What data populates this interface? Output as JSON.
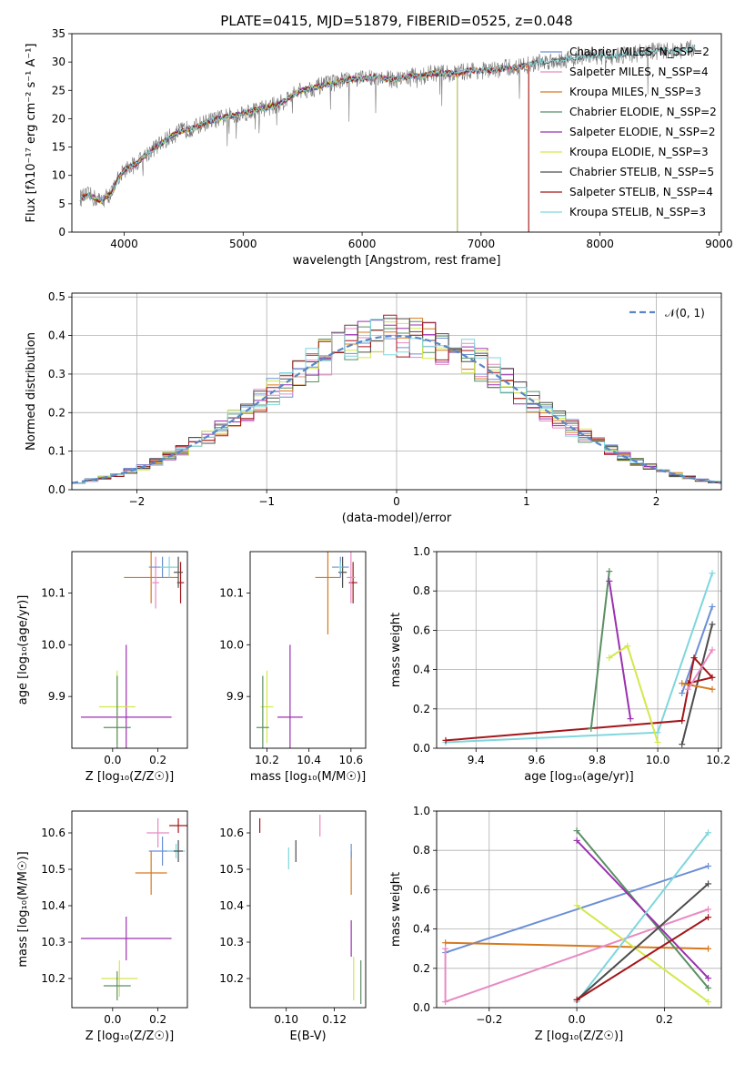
{
  "chart_data": [
    {
      "type": "line",
      "title": "PLATE=0415, MJD=51879, FIBERID=0525, z=0.048",
      "xlabel": "wavelength [Angstrom, rest frame]",
      "ylabel": "Flux [fλ10⁻¹⁷ erg cm⁻² s⁻¹ A⁻¹]",
      "xlim": [
        3560,
        9020
      ],
      "ylim": [
        0,
        35
      ],
      "xticks": [
        "4000",
        "5000",
        "6000",
        "7000",
        "8000",
        "9000"
      ],
      "yticks": [
        "0",
        "5",
        "10",
        "15",
        "20",
        "25",
        "30",
        "35"
      ],
      "legend_position": "top-right",
      "spectrum_anchors": {
        "x": [
          3630,
          3700,
          3800,
          3900,
          3950,
          4000,
          4100,
          4200,
          4300,
          4400,
          4500,
          4600,
          4700,
          4800,
          4900,
          5000,
          5100,
          5200,
          5300,
          5400,
          5500,
          5600,
          5700,
          5800,
          5900,
          6000,
          6100,
          6200,
          6300,
          6400,
          6500,
          6600,
          6700,
          6800,
          6900,
          7000,
          7100,
          7200,
          7300,
          7400,
          7500,
          7700,
          7900,
          8100,
          8300,
          8500,
          8700,
          8800
        ],
        "y": [
          6,
          6.5,
          5.5,
          7,
          9.5,
          11,
          12,
          14,
          15.5,
          17,
          18,
          18.5,
          19.5,
          20,
          20.5,
          21,
          21.5,
          22,
          22.5,
          24,
          25,
          25.5,
          26,
          26.5,
          27,
          27,
          27.5,
          27,
          27,
          27.5,
          27.5,
          28,
          28,
          28,
          28.5,
          28.5,
          28.5,
          29,
          29,
          29.5,
          30,
          30.5,
          31,
          31,
          31.5,
          32,
          32,
          32.5
        ]
      },
      "series": [
        {
          "name": "Chabrier MILES, N_SSP=2",
          "color": "#6b8fd6"
        },
        {
          "name": "Salpeter MILES, N_SSP=4",
          "color": "#e78ac3"
        },
        {
          "name": "Kroupa MILES, N_SSP=3",
          "color": "#d6791e"
        },
        {
          "name": "Chabrier ELODIE, N_SSP=2",
          "color": "#5a8f63"
        },
        {
          "name": "Salpeter ELODIE, N_SSP=2",
          "color": "#9b30b0"
        },
        {
          "name": "Kroupa ELODIE, N_SSP=3",
          "color": "#d4e84a"
        },
        {
          "name": "Chabrier STELIB, N_SSP=5",
          "color": "#4d4d4d"
        },
        {
          "name": "Salpeter STELIB, N_SSP=4",
          "color": "#a3161b"
        },
        {
          "name": "Kroupa STELIB, N_SSP=3",
          "color": "#7fd6dc"
        }
      ]
    },
    {
      "type": "area",
      "xlabel": "(data-model)/error",
      "ylabel": "Normed distribution",
      "xlim": [
        -2.5,
        2.5
      ],
      "ylim": [
        0,
        0.51
      ],
      "xticks": [
        "−2",
        "−1",
        "0",
        "1",
        "2"
      ],
      "yticks": [
        "0.0",
        "0.1",
        "0.2",
        "0.3",
        "0.4",
        "0.5"
      ],
      "legend": "𝒩(0, 1)",
      "legend_position": "top-right",
      "bin_width": 0.1,
      "grid": true
    },
    {
      "type": "scatter",
      "xlabel": "Z [log₁₀(Z/Z☉)]",
      "ylabel": "age  [log₁₀(age/yr)]",
      "xlim": [
        -0.18,
        0.33
      ],
      "ylim": [
        9.8,
        10.18
      ],
      "xticks": [
        "0.0",
        "0.2"
      ],
      "yticks": [
        "9.9",
        "10.0",
        "10.1"
      ],
      "points": [
        {
          "x": 0.17,
          "y": 10.13,
          "xe": 0.12,
          "ye": 0.05,
          "color": "#d6791e"
        },
        {
          "x": 0.19,
          "y": 10.12,
          "xe": 0.015,
          "ye": 0.05,
          "color": "#e78ac3"
        },
        {
          "x": 0.22,
          "y": 10.15,
          "xe": 0.06,
          "ye": 0.02,
          "color": "#6b8fd6"
        },
        {
          "x": 0.25,
          "y": 10.15,
          "xe": 0.04,
          "ye": 0.02,
          "color": "#7fd6dc"
        },
        {
          "x": 0.3,
          "y": 10.12,
          "xe": 0.015,
          "ye": 0.04,
          "color": "#a3161b"
        },
        {
          "x": 0.29,
          "y": 10.14,
          "xe": 0.02,
          "ye": 0.03,
          "color": "#4d4d4d"
        },
        {
          "x": 0.06,
          "y": 9.86,
          "xe": 0.2,
          "ye": 0.14,
          "color": "#9b30b0"
        },
        {
          "x": 0.02,
          "y": 9.88,
          "xe": 0.08,
          "ye": 0.07,
          "color": "#d4e84a"
        },
        {
          "x": 0.02,
          "y": 9.84,
          "xe": 0.06,
          "ye": 0.1,
          "color": "#5a8f63"
        }
      ]
    },
    {
      "type": "scatter",
      "xlabel": "mass [log₁₀(M/M☉)]",
      "xlim": [
        10.12,
        10.67
      ],
      "ylim": [
        9.8,
        10.18
      ],
      "xticks": [
        "10.2",
        "10.4",
        "10.6"
      ],
      "yticks": [
        "9.9",
        "10.0",
        "10.1"
      ],
      "points": [
        {
          "x": 10.49,
          "y": 10.13,
          "xe": 0.06,
          "ye": 0.11,
          "color": "#d6791e"
        },
        {
          "x": 10.55,
          "y": 10.15,
          "xe": 0.04,
          "ye": 0.02,
          "color": "#6b8fd6"
        },
        {
          "x": 10.56,
          "y": 10.14,
          "xe": 0.02,
          "ye": 0.03,
          "color": "#4d4d4d"
        },
        {
          "x": 10.55,
          "y": 10.15,
          "xe": 0.01,
          "ye": 0.01,
          "color": "#7fd6dc"
        },
        {
          "x": 10.61,
          "y": 10.12,
          "xe": 0.02,
          "ye": 0.04,
          "color": "#a3161b"
        },
        {
          "x": 10.6,
          "y": 10.13,
          "xe": 0.02,
          "ye": 0.05,
          "color": "#e78ac3"
        },
        {
          "x": 10.31,
          "y": 9.86,
          "xe": 0.06,
          "ye": 0.14,
          "color": "#9b30b0"
        },
        {
          "x": 10.2,
          "y": 9.88,
          "xe": 0.03,
          "ye": 0.07,
          "color": "#d4e84a"
        },
        {
          "x": 10.18,
          "y": 9.84,
          "xe": 0.03,
          "ye": 0.1,
          "color": "#5a8f63"
        }
      ]
    },
    {
      "type": "line",
      "xlabel": "age  [log₁₀(age/yr)]",
      "ylabel": "mass weight",
      "xlim": [
        9.27,
        10.21
      ],
      "ylim": [
        0,
        1
      ],
      "xticks": [
        "9.4",
        "9.6",
        "9.8",
        "10.0",
        "10.2"
      ],
      "yticks": [
        "0.0",
        "0.2",
        "0.4",
        "0.6",
        "0.8",
        "1.0"
      ],
      "grid": true,
      "series": [
        {
          "color": "#7fd6dc",
          "points": [
            [
              9.3,
              0.03
            ],
            [
              10.0,
              0.08
            ],
            [
              10.18,
              0.89
            ]
          ]
        },
        {
          "color": "#6b8fd6",
          "points": [
            [
              10.08,
              0.28
            ],
            [
              10.18,
              0.72
            ]
          ]
        },
        {
          "color": "#4d4d4d",
          "points": [
            [
              10.08,
              0.02
            ],
            [
              10.18,
              0.63
            ]
          ]
        },
        {
          "color": "#a3161b",
          "points": [
            [
              9.3,
              0.04
            ],
            [
              10.08,
              0.14
            ],
            [
              10.12,
              0.46
            ],
            [
              10.18,
              0.36
            ],
            [
              10.1,
              0.33
            ]
          ]
        },
        {
          "color": "#d6791e",
          "points": [
            [
              10.08,
              0.33
            ],
            [
              10.18,
              0.3
            ]
          ]
        },
        {
          "color": "#e78ac3",
          "points": [
            [
              10.1,
              0.3
            ],
            [
              10.18,
              0.5
            ]
          ]
        },
        {
          "color": "#5a8f63",
          "points": [
            [
              9.78,
              0.1
            ],
            [
              9.84,
              0.9
            ]
          ]
        },
        {
          "color": "#9b30b0",
          "points": [
            [
              9.84,
              0.85
            ],
            [
              9.91,
              0.15
            ]
          ]
        },
        {
          "color": "#d4e84a",
          "points": [
            [
              9.84,
              0.46
            ],
            [
              9.9,
              0.52
            ],
            [
              10.0,
              0.03
            ]
          ]
        }
      ]
    },
    {
      "type": "scatter",
      "xlabel": "Z [log₁₀(Z/Z☉)]",
      "ylabel": "mass [log₁₀(M/M☉)]",
      "xlim": [
        -0.18,
        0.33
      ],
      "ylim": [
        10.12,
        10.66
      ],
      "xticks": [
        "0.0",
        "0.2"
      ],
      "yticks": [
        "10.2",
        "10.3",
        "10.4",
        "10.5",
        "10.6"
      ],
      "points": [
        {
          "x": 0.29,
          "y": 10.62,
          "xe": 0.04,
          "ye": 0.02,
          "color": "#a3161b"
        },
        {
          "x": 0.2,
          "y": 10.6,
          "xe": 0.05,
          "ye": 0.04,
          "color": "#e78ac3"
        },
        {
          "x": 0.22,
          "y": 10.55,
          "xe": 0.06,
          "ye": 0.04,
          "color": "#6b8fd6"
        },
        {
          "x": 0.28,
          "y": 10.55,
          "xe": 0.04,
          "ye": 0.02,
          "color": "#7fd6dc"
        },
        {
          "x": 0.29,
          "y": 10.55,
          "xe": 0.02,
          "ye": 0.03,
          "color": "#4d4d4d"
        },
        {
          "x": 0.17,
          "y": 10.49,
          "xe": 0.07,
          "ye": 0.06,
          "color": "#d6791e"
        },
        {
          "x": 0.06,
          "y": 10.31,
          "xe": 0.2,
          "ye": 0.06,
          "color": "#9b30b0"
        },
        {
          "x": 0.03,
          "y": 10.2,
          "xe": 0.08,
          "ye": 0.05,
          "color": "#d4e84a"
        },
        {
          "x": 0.02,
          "y": 10.18,
          "xe": 0.06,
          "ye": 0.04,
          "color": "#5a8f63"
        }
      ]
    },
    {
      "type": "scatter",
      "xlabel": "E(B-V)",
      "xlim": [
        0.085,
        0.133
      ],
      "ylim": [
        10.12,
        10.66
      ],
      "xticks": [
        "0.10",
        "0.12"
      ],
      "yticks": [
        "10.2",
        "10.3",
        "10.4",
        "10.5",
        "10.6"
      ],
      "points": [
        {
          "x": 0.089,
          "y": 10.62,
          "ye": 0.02,
          "color": "#a3161b"
        },
        {
          "x": 0.114,
          "y": 10.62,
          "ye": 0.03,
          "color": "#e78ac3"
        },
        {
          "x": 0.101,
          "y": 10.53,
          "ye": 0.03,
          "color": "#7fd6dc"
        },
        {
          "x": 0.104,
          "y": 10.55,
          "ye": 0.03,
          "color": "#4d4d4d"
        },
        {
          "x": 0.127,
          "y": 10.49,
          "ye": 0.06,
          "color": "#d6791e"
        },
        {
          "x": 0.127,
          "y": 10.55,
          "ye": 0.02,
          "color": "#6b8fd6"
        },
        {
          "x": 0.127,
          "y": 10.31,
          "ye": 0.05,
          "color": "#9b30b0"
        },
        {
          "x": 0.128,
          "y": 10.2,
          "ye": 0.06,
          "color": "#d4e84a"
        },
        {
          "x": 0.131,
          "y": 10.19,
          "ye": 0.06,
          "color": "#5a8f63"
        }
      ]
    },
    {
      "type": "line",
      "xlabel": "Z [log₁₀(Z/Z☉)]",
      "ylabel": "mass weight",
      "xlim": [
        -0.32,
        0.33
      ],
      "ylim": [
        0,
        1
      ],
      "xticks": [
        "−0.2",
        "0.0",
        "0.2"
      ],
      "yticks": [
        "0.0",
        "0.2",
        "0.4",
        "0.6",
        "0.8",
        "1.0"
      ],
      "grid": true,
      "series": [
        {
          "color": "#6b8fd6",
          "points": [
            [
              -0.3,
              0.28
            ],
            [
              0.3,
              0.72
            ]
          ]
        },
        {
          "color": "#d6791e",
          "points": [
            [
              -0.3,
              0.33
            ],
            [
              0.3,
              0.3
            ]
          ]
        },
        {
          "color": "#e78ac3",
          "points": [
            [
              -0.3,
              0.3
            ],
            [
              -0.3,
              0.03
            ],
            [
              0.3,
              0.5
            ]
          ]
        },
        {
          "color": "#5a8f63",
          "points": [
            [
              0.0,
              0.9
            ],
            [
              0.3,
              0.1
            ]
          ]
        },
        {
          "color": "#9b30b0",
          "points": [
            [
              0.0,
              0.85
            ],
            [
              0.3,
              0.15
            ]
          ]
        },
        {
          "color": "#d4e84a",
          "points": [
            [
              0.0,
              0.52
            ],
            [
              0.3,
              0.03
            ]
          ]
        },
        {
          "color": "#7fd6dc",
          "points": [
            [
              0.0,
              0.03
            ],
            [
              0.3,
              0.89
            ]
          ]
        },
        {
          "color": "#4d4d4d",
          "points": [
            [
              0.0,
              0.04
            ],
            [
              0.3,
              0.63
            ]
          ]
        },
        {
          "color": "#a3161b",
          "points": [
            [
              0.0,
              0.04
            ],
            [
              0.3,
              0.46
            ]
          ]
        }
      ]
    }
  ]
}
